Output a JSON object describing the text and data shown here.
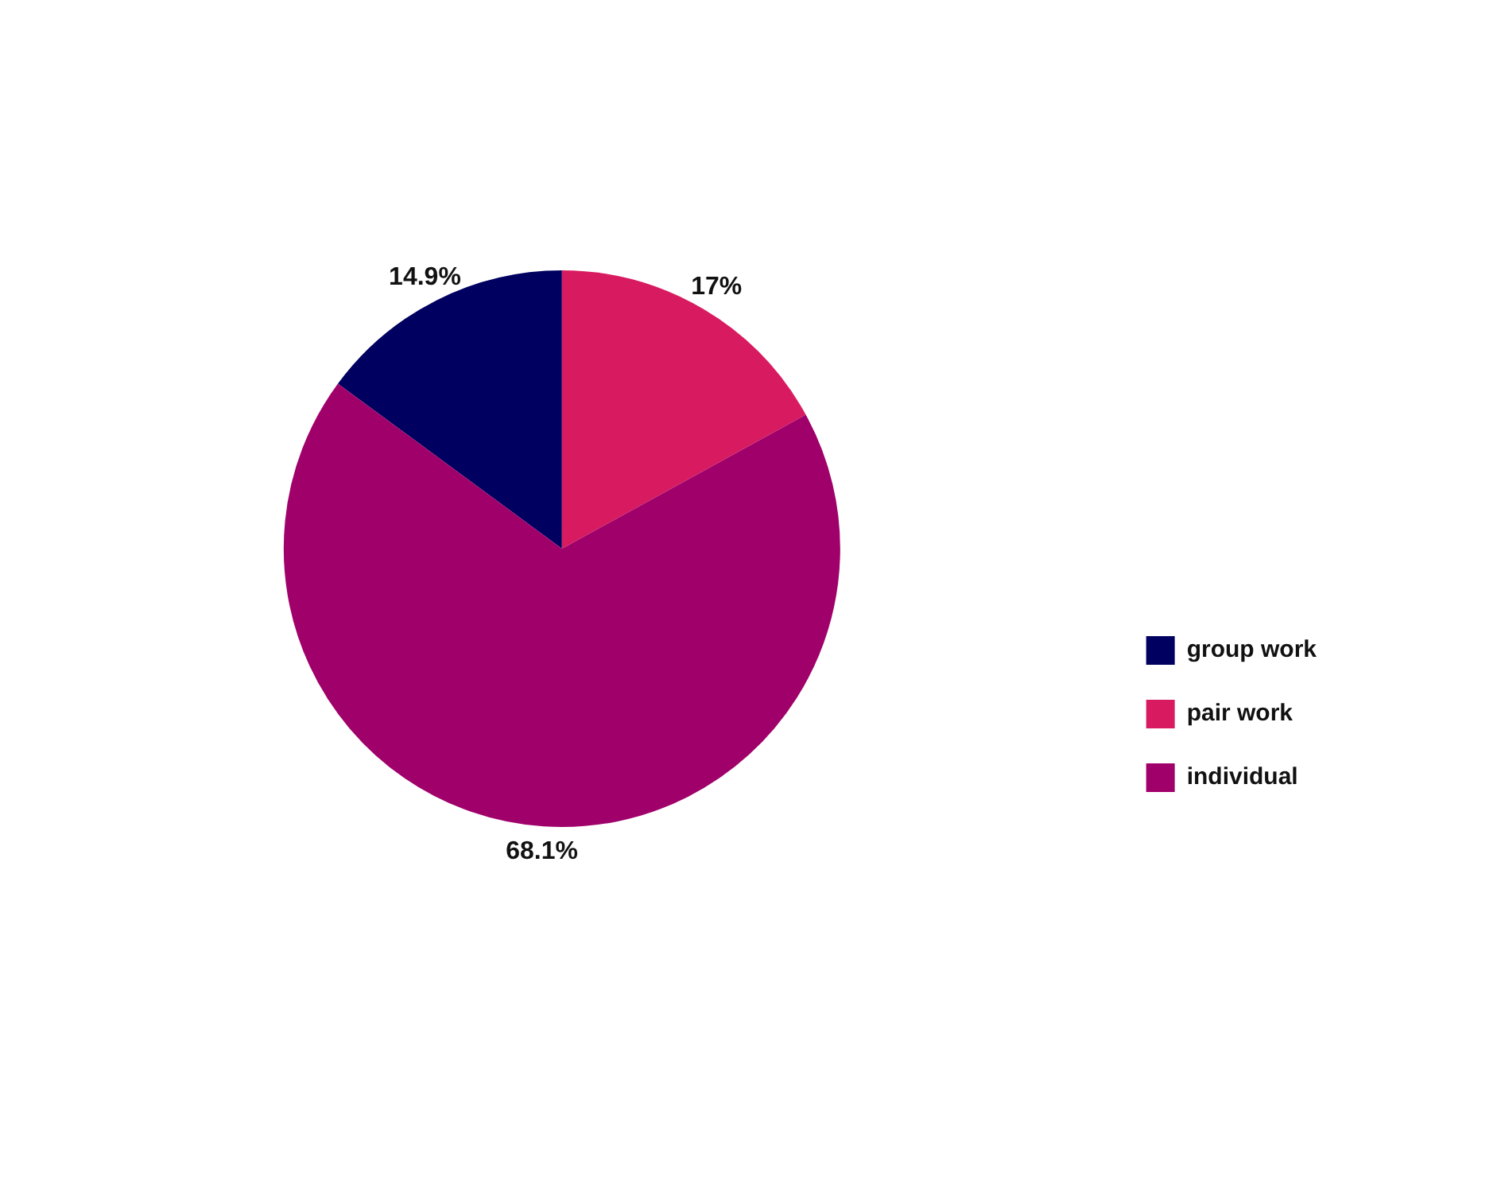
{
  "chart_data": {
    "type": "pie",
    "categories": [
      "group work",
      "pair work",
      "individual"
    ],
    "values": [
      14.9,
      17,
      68.1
    ],
    "colors": [
      "#000060",
      "#d81b60",
      "#a0006a"
    ],
    "value_labels": [
      "14.9%",
      "17%",
      "68.1%"
    ],
    "legend": "bottom right"
  }
}
